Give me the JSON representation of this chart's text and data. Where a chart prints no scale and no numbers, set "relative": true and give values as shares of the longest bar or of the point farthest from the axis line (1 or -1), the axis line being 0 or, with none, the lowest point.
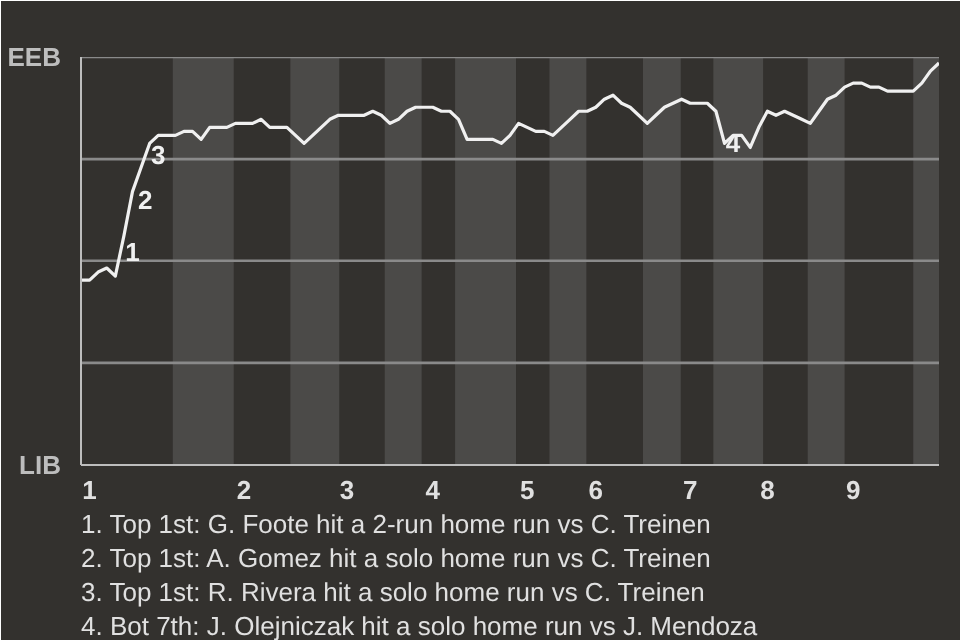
{
  "chart_data": {
    "type": "line",
    "relative": true,
    "categories": [
      null,
      "1",
      null,
      null,
      null,
      null,
      null,
      null,
      null,
      null,
      null,
      null,
      null,
      null,
      null,
      null,
      null,
      null,
      null,
      "2",
      null,
      null,
      null,
      null,
      null,
      null,
      null,
      null,
      null,
      null,
      null,
      "3",
      null,
      null,
      null,
      null,
      null,
      null,
      null,
      null,
      null,
      "4",
      null,
      null,
      null,
      null,
      null,
      null,
      null,
      null,
      null,
      null,
      "5",
      null,
      null,
      null,
      null,
      null,
      null,
      null,
      "6",
      null,
      null,
      null,
      null,
      null,
      null,
      null,
      null,
      null,
      null,
      "7",
      null,
      null,
      null,
      null,
      null,
      null,
      null,
      null,
      "8",
      null,
      null,
      null,
      null,
      null,
      null,
      null,
      null,
      null,
      "9",
      null,
      null,
      null,
      null,
      null,
      null,
      null,
      null,
      null,
      null
    ],
    "series": [
      {
        "color": "#f0f0f0",
        "values": [
          0.46,
          0.46,
          0.48,
          0.49,
          0.47,
          0.57,
          0.68,
          0.74,
          0.8,
          0.82,
          0.82,
          0.82,
          0.83,
          0.83,
          0.81,
          0.84,
          0.84,
          0.84,
          0.85,
          0.85,
          0.85,
          0.86,
          0.84,
          0.84,
          0.84,
          0.82,
          0.8,
          0.82,
          0.84,
          0.86,
          0.87,
          0.87,
          0.87,
          0.87,
          0.88,
          0.87,
          0.85,
          0.86,
          0.88,
          0.89,
          0.89,
          0.89,
          0.88,
          0.88,
          0.86,
          0.81,
          0.81,
          0.81,
          0.81,
          0.8,
          0.82,
          0.85,
          0.84,
          0.83,
          0.83,
          0.82,
          0.84,
          0.86,
          0.88,
          0.88,
          0.89,
          0.91,
          0.92,
          0.9,
          0.89,
          0.87,
          0.85,
          0.87,
          0.89,
          0.9,
          0.91,
          0.9,
          0.9,
          0.9,
          0.88,
          0.8,
          0.82,
          0.82,
          0.79,
          0.84,
          0.88,
          0.87,
          0.88,
          0.87,
          0.86,
          0.85,
          0.88,
          0.91,
          0.92,
          0.94,
          0.95,
          0.95,
          0.94,
          0.94,
          0.93,
          0.93,
          0.93,
          0.93,
          0.95,
          0.98,
          1.0
        ]
      }
    ],
    "marker": "none",
    "line_style": "solid",
    "ref_lines": [
      {
        "axis": "y",
        "value": 0.254,
        "color": "#8a8a8a"
      },
      {
        "axis": "y",
        "value": 0.508,
        "color": "#8a8a8a"
      },
      {
        "axis": "y",
        "value": 0.761,
        "color": "#8a8a8a"
      },
      {
        "axis": "y",
        "value": 1.015,
        "color": "#8a8a8a"
      }
    ],
    "annotations": [
      "EEB",
      "LIB",
      "1",
      "2",
      "3",
      "4",
      "1. Top 1st: G. Foote hit a 2-run home run vs C. Treinen",
      "2. Top 1st: A. Gomez hit a solo home run vs C. Treinen",
      "3. Top 1st: R. Rivera hit a solo home run vs C. Treinen",
      "4. Bot 7th: J. Olejniczak hit a solo home run vs J. Mendoza"
    ]
  }
}
